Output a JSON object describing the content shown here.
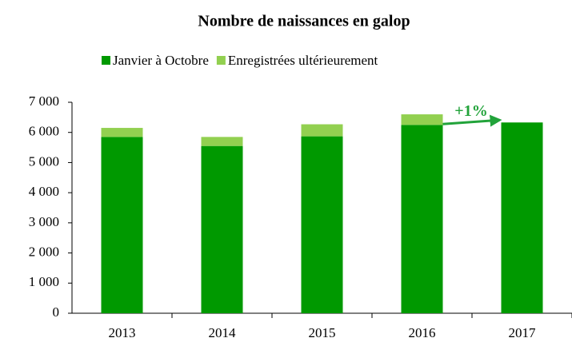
{
  "chart_data": {
    "type": "stacked_bar",
    "title": "Nombre de naissances en galop",
    "categories": [
      "2013",
      "2014",
      "2015",
      "2016",
      "2017"
    ],
    "series": [
      {
        "name": "Janvier à Octobre",
        "color": "#009900",
        "values": [
          5850,
          5550,
          5870,
          6250,
          6330
        ]
      },
      {
        "name": "Enregistrées ultérieurement",
        "color": "#92d050",
        "values": [
          300,
          300,
          400,
          350,
          null
        ]
      }
    ],
    "ylim": [
      0,
      7000
    ],
    "yticks": [
      0,
      {
        "value": 1000,
        "label": "1 000"
      },
      {
        "value": 2000,
        "label": "2 000"
      },
      {
        "value": 3000,
        "label": "3 000"
      },
      {
        "value": 4000,
        "label": "4 000"
      },
      {
        "value": 5000,
        "label": "5 000"
      },
      {
        "value": 6000,
        "label": "6 000"
      },
      {
        "value": 7000,
        "label": "7 000"
      }
    ],
    "legend": "top",
    "annotations": [
      {
        "text": "+1%",
        "color": "#22a33a"
      }
    ]
  }
}
